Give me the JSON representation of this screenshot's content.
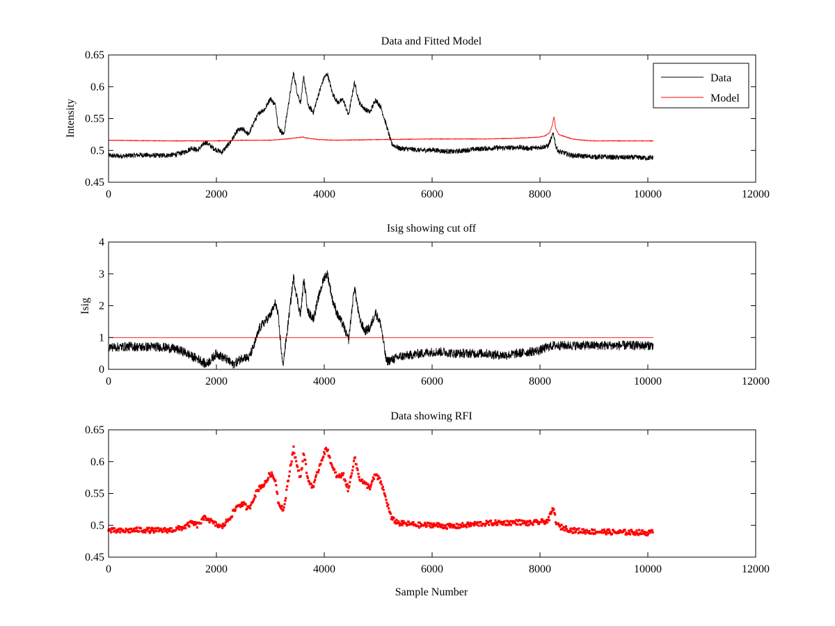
{
  "chart_data": [
    {
      "type": "line",
      "title": "Data and Fitted Model",
      "xlabel": "",
      "ylabel": "Intensity",
      "xlim": [
        0,
        12000
      ],
      "ylim": [
        0.45,
        0.65
      ],
      "xticks": [
        0,
        2000,
        4000,
        6000,
        8000,
        10000,
        12000
      ],
      "yticks": [
        0.45,
        0.5,
        0.55,
        0.6,
        0.65
      ],
      "xtick_labels": [
        "0",
        "2000",
        "4000",
        "6000",
        "8000",
        "10000",
        "12000"
      ],
      "ytick_labels": [
        "0.45",
        "0.5",
        "0.55",
        "0.6",
        "0.65"
      ],
      "legend": {
        "position": "top-right"
      },
      "series": [
        {
          "name": "Data",
          "color": "#000000",
          "noise": 0.004,
          "x": [
            0,
            200,
            400,
            600,
            800,
            1000,
            1200,
            1400,
            1550,
            1650,
            1800,
            1950,
            2100,
            2250,
            2400,
            2500,
            2600,
            2700,
            2800,
            2900,
            3000,
            3100,
            3150,
            3250,
            3350,
            3430,
            3500,
            3560,
            3620,
            3700,
            3800,
            3900,
            4000,
            4060,
            4150,
            4250,
            4350,
            4450,
            4560,
            4650,
            4750,
            4850,
            4950,
            5050,
            5150,
            5250,
            5400,
            5600,
            5800,
            6000,
            6200,
            6400,
            6600,
            6800,
            7000,
            7200,
            7400,
            7600,
            7800,
            8000,
            8150,
            8250,
            8300,
            8350,
            8450,
            8600,
            8800,
            9000,
            9200,
            9400,
            9600,
            9800,
            10000,
            10100
          ],
          "y": [
            0.492,
            0.491,
            0.492,
            0.493,
            0.492,
            0.492,
            0.493,
            0.497,
            0.504,
            0.5,
            0.513,
            0.503,
            0.497,
            0.512,
            0.532,
            0.533,
            0.525,
            0.545,
            0.56,
            0.565,
            0.582,
            0.57,
            0.535,
            0.525,
            0.58,
            0.622,
            0.59,
            0.575,
            0.615,
            0.57,
            0.56,
            0.59,
            0.615,
            0.62,
            0.59,
            0.575,
            0.58,
            0.555,
            0.607,
            0.575,
            0.565,
            0.56,
            0.58,
            0.568,
            0.54,
            0.51,
            0.503,
            0.502,
            0.5,
            0.501,
            0.499,
            0.498,
            0.5,
            0.502,
            0.503,
            0.504,
            0.504,
            0.505,
            0.503,
            0.505,
            0.507,
            0.527,
            0.505,
            0.498,
            0.496,
            0.492,
            0.491,
            0.49,
            0.49,
            0.489,
            0.489,
            0.489,
            0.488,
            0.489
          ]
        },
        {
          "name": "Model",
          "color": "#ff0000",
          "noise": 0.0004,
          "x": [
            0,
            1000,
            2000,
            2500,
            3000,
            3300,
            3500,
            3600,
            3700,
            3900,
            4200,
            5000,
            6000,
            7000,
            7500,
            7800,
            8000,
            8100,
            8180,
            8230,
            8260,
            8290,
            8350,
            8450,
            8600,
            8800,
            9000,
            9500,
            10000,
            10100
          ],
          "y": [
            0.516,
            0.515,
            0.515,
            0.516,
            0.516,
            0.518,
            0.52,
            0.521,
            0.519,
            0.517,
            0.516,
            0.517,
            0.518,
            0.518,
            0.519,
            0.52,
            0.521,
            0.523,
            0.528,
            0.54,
            0.553,
            0.535,
            0.525,
            0.522,
            0.518,
            0.516,
            0.515,
            0.515,
            0.515,
            0.515
          ]
        }
      ]
    },
    {
      "type": "line",
      "title": "Isig showing cut off",
      "xlabel": "",
      "ylabel": "Isig",
      "xlim": [
        0,
        12000
      ],
      "ylim": [
        0,
        4
      ],
      "xticks": [
        0,
        2000,
        4000,
        6000,
        8000,
        10000,
        12000
      ],
      "yticks": [
        0,
        1,
        2,
        3,
        4
      ],
      "xtick_labels": [
        "0",
        "2000",
        "4000",
        "6000",
        "8000",
        "10000",
        "12000"
      ],
      "ytick_labels": [
        "0",
        "1",
        "2",
        "3",
        "4"
      ],
      "series": [
        {
          "color": "#000000",
          "noise": 0.15,
          "x": [
            0,
            200,
            400,
            600,
            800,
            1000,
            1200,
            1400,
            1550,
            1700,
            1800,
            1900,
            2000,
            2100,
            2200,
            2300,
            2400,
            2500,
            2600,
            2700,
            2800,
            2900,
            3000,
            3100,
            3150,
            3230,
            3300,
            3430,
            3500,
            3560,
            3620,
            3700,
            3800,
            3900,
            4000,
            4060,
            4150,
            4250,
            4350,
            4450,
            4560,
            4650,
            4750,
            4850,
            4950,
            5050,
            5150,
            5250,
            5400,
            5600,
            5800,
            6000,
            6200,
            6400,
            6600,
            6800,
            7000,
            7200,
            7400,
            7600,
            7800,
            8000,
            8150,
            8250,
            8400,
            8600,
            8800,
            9000,
            9200,
            9400,
            9600,
            9800,
            10000,
            10100
          ],
          "y": [
            0.7,
            0.7,
            0.72,
            0.7,
            0.71,
            0.7,
            0.65,
            0.55,
            0.4,
            0.3,
            0.15,
            0.3,
            0.5,
            0.4,
            0.3,
            0.15,
            0.25,
            0.4,
            0.35,
            0.75,
            1.3,
            1.5,
            1.7,
            2.1,
            1.6,
            0.1,
            1.0,
            2.9,
            2.2,
            1.7,
            2.8,
            1.8,
            1.6,
            2.3,
            2.9,
            3.0,
            2.2,
            1.7,
            1.4,
            0.9,
            2.6,
            1.6,
            1.2,
            1.3,
            1.8,
            1.4,
            0.25,
            0.3,
            0.4,
            0.45,
            0.5,
            0.55,
            0.55,
            0.5,
            0.5,
            0.5,
            0.5,
            0.45,
            0.45,
            0.5,
            0.55,
            0.6,
            0.7,
            0.75,
            0.75,
            0.75,
            0.75,
            0.75,
            0.75,
            0.75,
            0.75,
            0.75,
            0.75,
            0.75
          ]
        },
        {
          "color": "#ff0000",
          "noise": 0,
          "x": [
            0,
            10100
          ],
          "y": [
            1,
            1
          ]
        }
      ]
    },
    {
      "type": "scatter",
      "title": "Data showing RFI",
      "xlabel": "Sample Number",
      "ylabel": "",
      "xlim": [
        0,
        12000
      ],
      "ylim": [
        0.45,
        0.65
      ],
      "xticks": [
        0,
        2000,
        4000,
        6000,
        8000,
        10000,
        12000
      ],
      "yticks": [
        0.45,
        0.5,
        0.55,
        0.6,
        0.65
      ],
      "xtick_labels": [
        "0",
        "2000",
        "4000",
        "6000",
        "8000",
        "10000",
        "12000"
      ],
      "ytick_labels": [
        "0.45",
        "0.5",
        "0.55",
        "0.6",
        "0.65"
      ],
      "series": [
        {
          "color": "#ff0000",
          "noise": 0.004,
          "x": [
            0,
            200,
            400,
            600,
            800,
            1000,
            1200,
            1400,
            1550,
            1650,
            1800,
            1950,
            2100,
            2250,
            2400,
            2500,
            2600,
            2700,
            2800,
            2900,
            3000,
            3100,
            3150,
            3250,
            3350,
            3430,
            3500,
            3560,
            3620,
            3700,
            3800,
            3900,
            4000,
            4060,
            4150,
            4250,
            4350,
            4450,
            4560,
            4650,
            4750,
            4850,
            4950,
            5050,
            5150,
            5250,
            5400,
            5600,
            5800,
            6000,
            6200,
            6400,
            6600,
            6800,
            7000,
            7200,
            7400,
            7600,
            7800,
            8000,
            8150,
            8250,
            8300,
            8350,
            8450,
            8600,
            8800,
            9000,
            9200,
            9400,
            9600,
            9800,
            10000,
            10100
          ],
          "y": [
            0.492,
            0.491,
            0.492,
            0.493,
            0.492,
            0.492,
            0.493,
            0.497,
            0.504,
            0.5,
            0.513,
            0.503,
            0.497,
            0.512,
            0.532,
            0.533,
            0.525,
            0.545,
            0.56,
            0.565,
            0.582,
            0.57,
            0.535,
            0.525,
            0.58,
            0.622,
            0.59,
            0.575,
            0.615,
            0.57,
            0.56,
            0.59,
            0.615,
            0.62,
            0.59,
            0.575,
            0.58,
            0.555,
            0.607,
            0.575,
            0.565,
            0.56,
            0.58,
            0.568,
            0.54,
            0.51,
            0.503,
            0.502,
            0.5,
            0.501,
            0.499,
            0.498,
            0.5,
            0.502,
            0.503,
            0.504,
            0.504,
            0.505,
            0.503,
            0.505,
            0.507,
            0.527,
            0.505,
            0.498,
            0.496,
            0.492,
            0.491,
            0.49,
            0.49,
            0.489,
            0.489,
            0.489,
            0.488,
            0.489
          ]
        }
      ]
    }
  ]
}
